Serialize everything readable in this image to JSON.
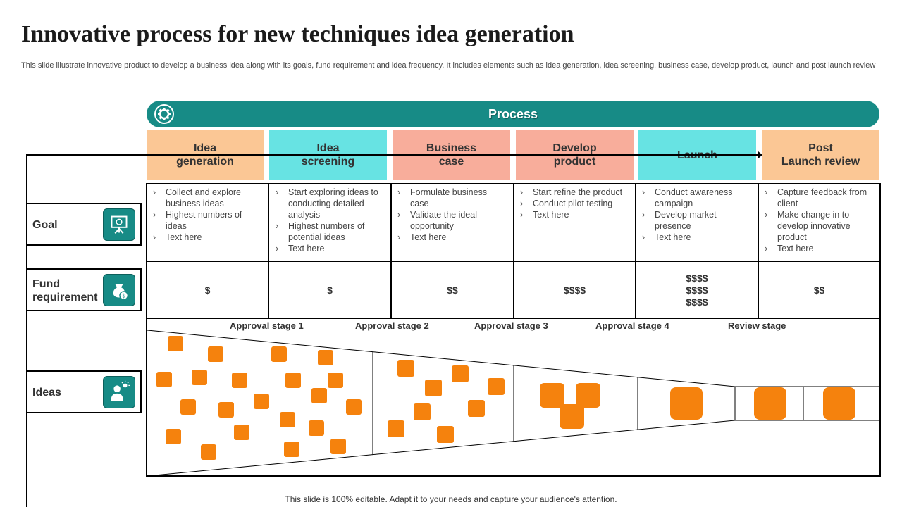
{
  "title": "Innovative process for new techniques idea generation",
  "subtitle": "This slide illustrate innovative product to develop a business idea along with its goals, fund requirement and idea frequency. It includes elements such as idea generation, idea screening, business case, develop product, launch and post launch review",
  "process_label": "Process",
  "colors": {
    "teal": "#178b86",
    "peach": "#fbc795",
    "cyan": "#67e3e3",
    "salmon": "#f8ad9b",
    "orange": "#f5820d"
  },
  "stages": [
    {
      "label": "Idea\ngeneration",
      "color": "#fbc795"
    },
    {
      "label": "Idea\nscreening",
      "color": "#67e3e3"
    },
    {
      "label": "Business\ncase",
      "color": "#f8ad9b"
    },
    {
      "label": "Develop\nproduct",
      "color": "#f8ad9b"
    },
    {
      "label": "Launch",
      "color": "#67e3e3"
    },
    {
      "label": "Post\nLaunch review",
      "color": "#fbc795"
    }
  ],
  "goals": [
    [
      "Collect and explore business ideas",
      "Highest numbers of ideas",
      "Text here"
    ],
    [
      "Start exploring ideas to conducting detailed analysis",
      "Highest numbers of potential ideas",
      "Text here"
    ],
    [
      "Formulate business case",
      "Validate the ideal opportunity",
      "Text here"
    ],
    [
      "Start refine the product",
      "Conduct pilot testing",
      "Text here"
    ],
    [
      "Conduct awareness campaign",
      "Develop market presence",
      "Text here"
    ],
    [
      "Capture feedback from client",
      "Make change in to develop innovative product",
      "Text here"
    ]
  ],
  "funds": [
    "$",
    "$",
    "$$",
    "$$$$",
    "$$$$\n$$$$\n$$$$",
    "$$"
  ],
  "side": {
    "goal": {
      "label": "Goal",
      "icon": "presentation-board-icon"
    },
    "fund": {
      "label": "Fund requirement",
      "icon": "money-bag-icon"
    },
    "ideas": {
      "label": "Ideas",
      "icon": "idea-person-icon"
    }
  },
  "approvals": [
    "Approval stage 1",
    "Approval stage 2",
    "Approval stage 3",
    "Approval stage 4",
    "Review stage"
  ],
  "footer": "This slide is 100% editable. Adapt it to your needs and capture your audience's attention."
}
